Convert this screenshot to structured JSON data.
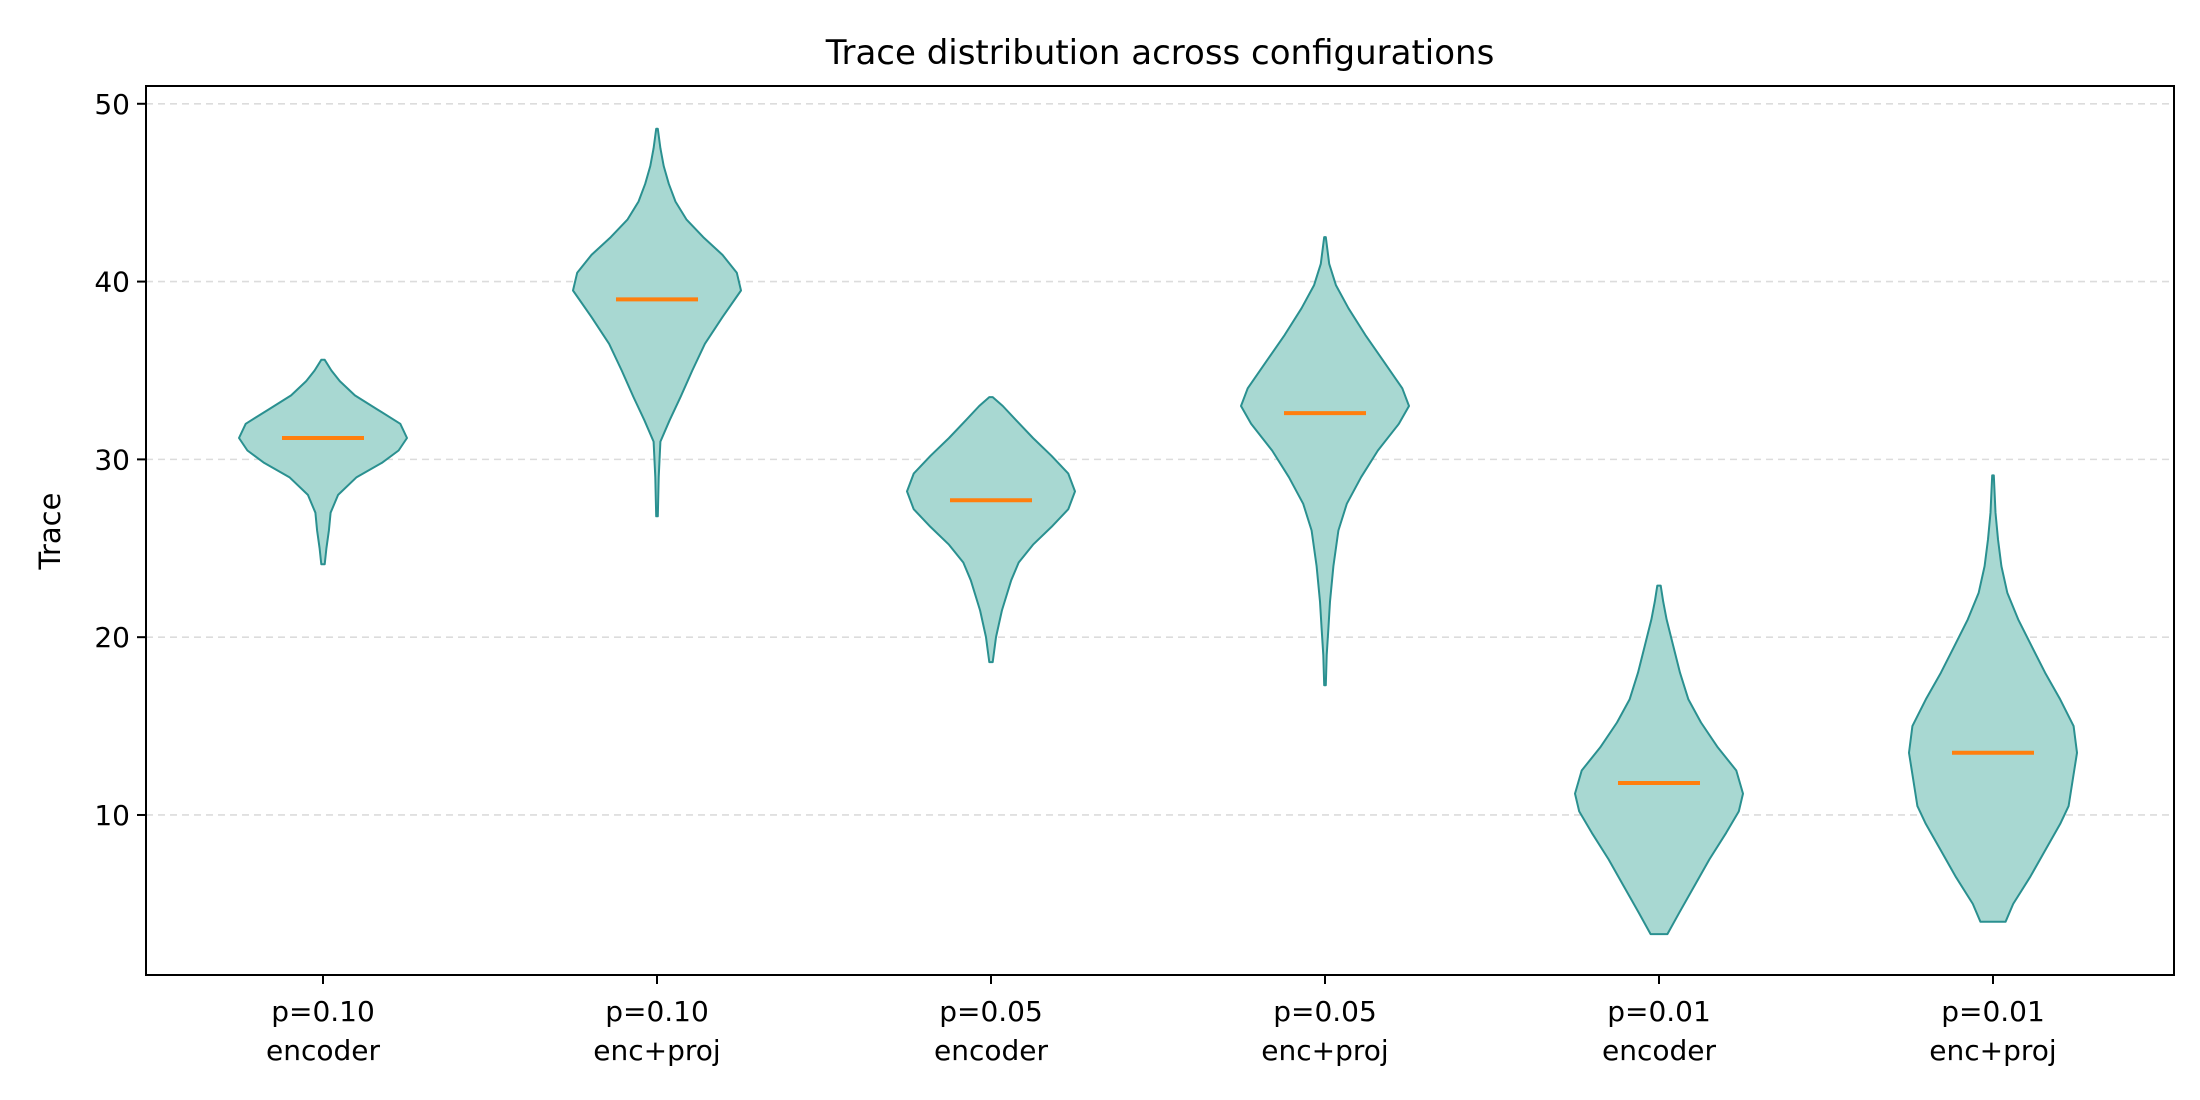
{
  "chart_data": {
    "type": "violin",
    "title": "Trace distribution across configurations",
    "xlabel": "",
    "ylabel": "Trace",
    "ylim": [
      1,
      51
    ],
    "yticks": [
      10,
      20,
      30,
      40,
      50
    ],
    "grid": "y-dashed",
    "colors": {
      "fill": "#a8d8d2",
      "edge": "#2a9090",
      "median": "#ff7f0e",
      "grid": "#dcdcdc"
    },
    "categories": [
      {
        "line1": "p=0.10",
        "line2": "encoder"
      },
      {
        "line1": "p=0.10",
        "line2": "enc+proj"
      },
      {
        "line1": "p=0.05",
        "line2": "encoder"
      },
      {
        "line1": "p=0.05",
        "line2": "enc+proj"
      },
      {
        "line1": "p=0.01",
        "line2": "encoder"
      },
      {
        "line1": "p=0.01",
        "line2": "enc+proj"
      }
    ],
    "series": [
      {
        "median": 31.2,
        "min": 24.1,
        "max": 35.6,
        "profile": [
          [
            24.1,
            0.02
          ],
          [
            25,
            0.04
          ],
          [
            26,
            0.07
          ],
          [
            27,
            0.09
          ],
          [
            28,
            0.18
          ],
          [
            29,
            0.4
          ],
          [
            29.8,
            0.7
          ],
          [
            30.5,
            0.9
          ],
          [
            31.2,
            1.0
          ],
          [
            32,
            0.92
          ],
          [
            32.8,
            0.65
          ],
          [
            33.6,
            0.38
          ],
          [
            34.4,
            0.2
          ],
          [
            35,
            0.1
          ],
          [
            35.6,
            0.02
          ]
        ]
      },
      {
        "median": 39.0,
        "min": 26.8,
        "max": 48.6,
        "profile": [
          [
            26.8,
            0.01
          ],
          [
            29,
            0.02
          ],
          [
            31,
            0.04
          ],
          [
            32.2,
            0.15
          ],
          [
            33.5,
            0.28
          ],
          [
            35,
            0.42
          ],
          [
            36.5,
            0.57
          ],
          [
            38,
            0.78
          ],
          [
            39.5,
            1.0
          ],
          [
            40.5,
            0.95
          ],
          [
            41.5,
            0.78
          ],
          [
            42.5,
            0.55
          ],
          [
            43.5,
            0.35
          ],
          [
            44.5,
            0.22
          ],
          [
            45.5,
            0.14
          ],
          [
            46.5,
            0.08
          ],
          [
            47.5,
            0.04
          ],
          [
            48.6,
            0.01
          ]
        ]
      },
      {
        "median": 27.7,
        "min": 18.6,
        "max": 33.5,
        "profile": [
          [
            18.6,
            0.02
          ],
          [
            20,
            0.06
          ],
          [
            21.5,
            0.13
          ],
          [
            23.2,
            0.24
          ],
          [
            24.2,
            0.33
          ],
          [
            25.2,
            0.5
          ],
          [
            26.2,
            0.72
          ],
          [
            27.2,
            0.92
          ],
          [
            28.2,
            1.0
          ],
          [
            29.2,
            0.92
          ],
          [
            30.2,
            0.72
          ],
          [
            31.2,
            0.5
          ],
          [
            32.2,
            0.3
          ],
          [
            33,
            0.14
          ],
          [
            33.5,
            0.02
          ]
        ]
      },
      {
        "median": 32.6,
        "min": 17.3,
        "max": 42.5,
        "profile": [
          [
            17.3,
            0.01
          ],
          [
            19,
            0.02
          ],
          [
            20.5,
            0.04
          ],
          [
            22,
            0.06
          ],
          [
            24,
            0.1
          ],
          [
            26,
            0.16
          ],
          [
            27.5,
            0.26
          ],
          [
            29,
            0.43
          ],
          [
            30.5,
            0.63
          ],
          [
            32,
            0.88
          ],
          [
            33,
            1.0
          ],
          [
            34,
            0.92
          ],
          [
            35.5,
            0.7
          ],
          [
            37,
            0.48
          ],
          [
            38.5,
            0.28
          ],
          [
            39.8,
            0.13
          ],
          [
            41,
            0.05
          ],
          [
            42.5,
            0.01
          ]
        ]
      },
      {
        "median": 11.8,
        "min": 3.3,
        "max": 22.9,
        "profile": [
          [
            3.3,
            0.1
          ],
          [
            4.5,
            0.24
          ],
          [
            6,
            0.42
          ],
          [
            7.5,
            0.6
          ],
          [
            9,
            0.8
          ],
          [
            10.2,
            0.95
          ],
          [
            11.2,
            1.0
          ],
          [
            12.5,
            0.92
          ],
          [
            13.8,
            0.7
          ],
          [
            15.2,
            0.5
          ],
          [
            16.5,
            0.35
          ],
          [
            18,
            0.25
          ],
          [
            19.5,
            0.17
          ],
          [
            21,
            0.09
          ],
          [
            22,
            0.05
          ],
          [
            22.9,
            0.02
          ]
        ]
      },
      {
        "median": 13.5,
        "min": 4.0,
        "max": 29.1,
        "profile": [
          [
            4.0,
            0.15
          ],
          [
            5,
            0.24
          ],
          [
            6.5,
            0.44
          ],
          [
            8,
            0.62
          ],
          [
            9.5,
            0.8
          ],
          [
            10.5,
            0.9
          ],
          [
            12,
            0.95
          ],
          [
            13.5,
            1.0
          ],
          [
            15,
            0.96
          ],
          [
            16.5,
            0.8
          ],
          [
            18,
            0.62
          ],
          [
            19.5,
            0.46
          ],
          [
            21,
            0.3
          ],
          [
            22.5,
            0.17
          ],
          [
            24,
            0.1
          ],
          [
            25.5,
            0.06
          ],
          [
            27,
            0.03
          ],
          [
            29.1,
            0.01
          ]
        ]
      }
    ]
  }
}
